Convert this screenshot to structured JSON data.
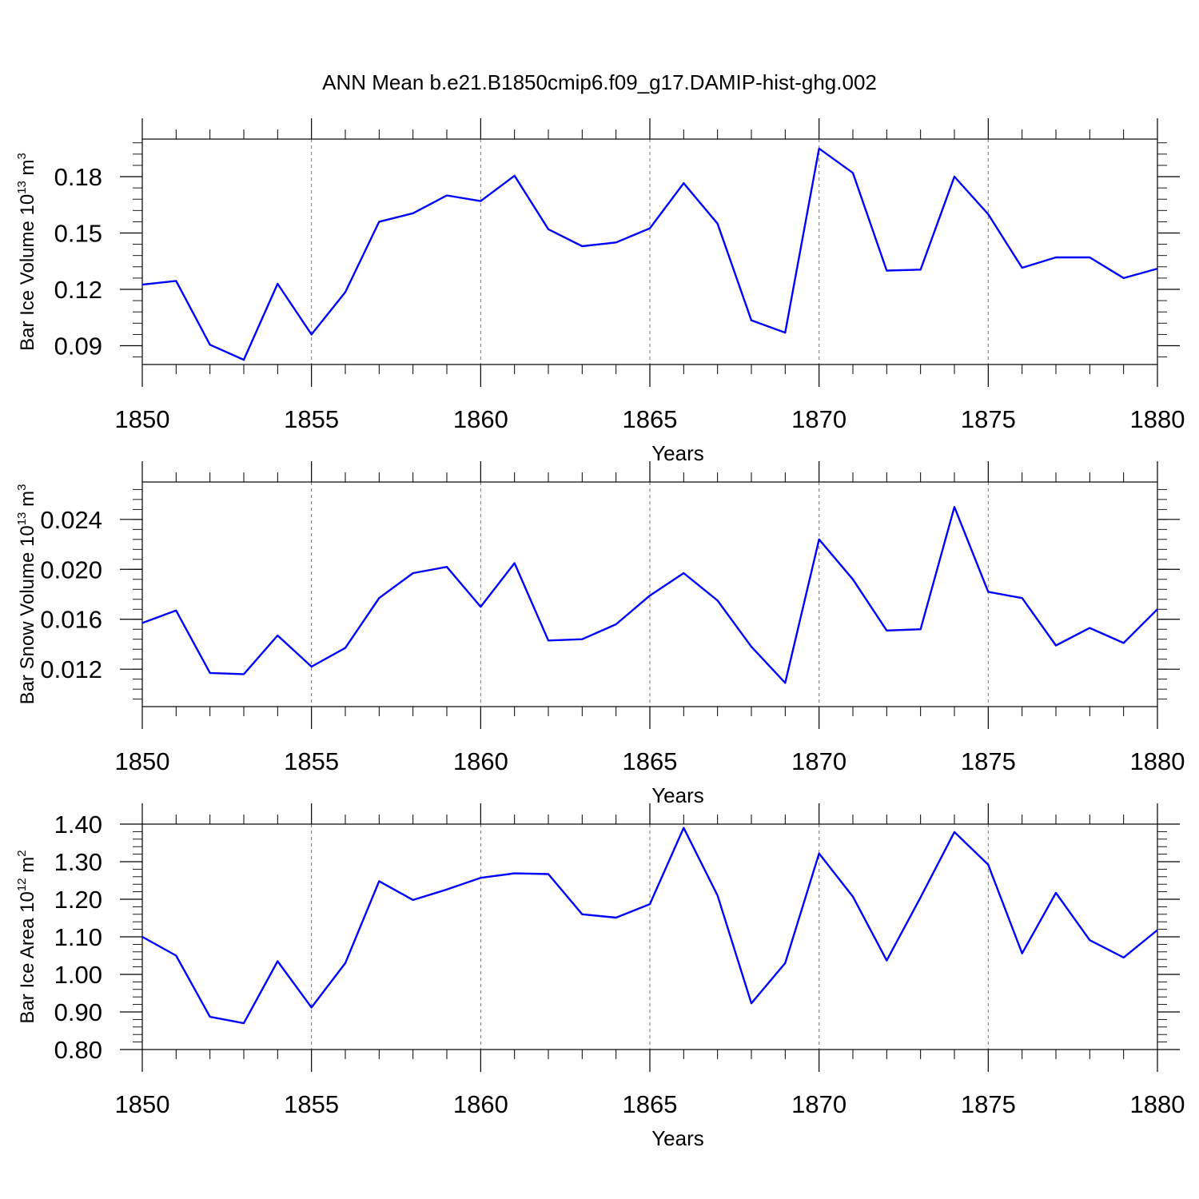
{
  "title": "ANN Mean b.e21.B1850cmip6.f09_g17.DAMIP-hist-ghg.002",
  "line_color": "#0000ff",
  "chart_data": [
    {
      "type": "line",
      "ylabel": "Bar Ice Volume 10",
      "ylabel_exp": "13",
      "ylabel_unit": " m",
      "ylabel_unit_exp": "3",
      "xlabel": "Years",
      "x": [
        1850,
        1851,
        1852,
        1853,
        1854,
        1855,
        1856,
        1857,
        1858,
        1859,
        1860,
        1861,
        1862,
        1863,
        1864,
        1865,
        1866,
        1867,
        1868,
        1869,
        1870,
        1871,
        1872,
        1873,
        1874,
        1875,
        1876,
        1877,
        1878,
        1879,
        1880
      ],
      "values": [
        0.1225,
        0.1245,
        0.0905,
        0.0825,
        0.123,
        0.096,
        0.1185,
        0.156,
        0.1605,
        0.17,
        0.167,
        0.1805,
        0.152,
        0.143,
        0.145,
        0.1525,
        0.1765,
        0.155,
        0.1035,
        0.097,
        0.195,
        0.182,
        0.13,
        0.1305,
        0.18,
        0.16,
        0.1315,
        0.137,
        0.137,
        0.126,
        0.131
      ],
      "xlim": [
        1850,
        1880
      ],
      "ylim": [
        0.08,
        0.2
      ],
      "yticks": [
        0.09,
        0.12,
        0.15,
        0.18
      ],
      "ytick_labels": [
        "0.09",
        "0.12",
        "0.15",
        "0.18"
      ],
      "xticks": [
        1850,
        1855,
        1860,
        1865,
        1870,
        1875,
        1880
      ],
      "xtick_labels": [
        "1850",
        "1855",
        "1860",
        "1865",
        "1870",
        "1875",
        "1880"
      ]
    },
    {
      "type": "line",
      "ylabel": "Bar Snow Volume 10",
      "ylabel_exp": "13",
      "ylabel_unit": " m",
      "ylabel_unit_exp": "3",
      "xlabel": "Years",
      "x": [
        1850,
        1851,
        1852,
        1853,
        1854,
        1855,
        1856,
        1857,
        1858,
        1859,
        1860,
        1861,
        1862,
        1863,
        1864,
        1865,
        1866,
        1867,
        1868,
        1869,
        1870,
        1871,
        1872,
        1873,
        1874,
        1875,
        1876,
        1877,
        1878,
        1879,
        1880
      ],
      "values": [
        0.0157,
        0.0167,
        0.0117,
        0.0116,
        0.0147,
        0.0122,
        0.0137,
        0.0177,
        0.0197,
        0.0202,
        0.017,
        0.0205,
        0.0143,
        0.0144,
        0.0156,
        0.0179,
        0.0197,
        0.0175,
        0.0138,
        0.0109,
        0.0224,
        0.0192,
        0.0151,
        0.0152,
        0.025,
        0.0182,
        0.0177,
        0.0139,
        0.0153,
        0.0141,
        0.0168
      ],
      "xlim": [
        1850,
        1880
      ],
      "ylim": [
        0.009,
        0.027
      ],
      "yticks": [
        0.012,
        0.016,
        0.02,
        0.024
      ],
      "ytick_labels": [
        "0.012",
        "0.016",
        "0.020",
        "0.024"
      ],
      "xticks": [
        1850,
        1855,
        1860,
        1865,
        1870,
        1875,
        1880
      ],
      "xtick_labels": [
        "1850",
        "1855",
        "1860",
        "1865",
        "1870",
        "1875",
        "1880"
      ]
    },
    {
      "type": "line",
      "ylabel": "Bar Ice Area 10",
      "ylabel_exp": "12",
      "ylabel_unit": " m",
      "ylabel_unit_exp": "2",
      "xlabel": "Years",
      "x": [
        1850,
        1851,
        1852,
        1853,
        1854,
        1855,
        1856,
        1857,
        1858,
        1859,
        1860,
        1861,
        1862,
        1863,
        1864,
        1865,
        1866,
        1867,
        1868,
        1869,
        1870,
        1871,
        1872,
        1873,
        1874,
        1875,
        1876,
        1877,
        1878,
        1879,
        1880
      ],
      "values": [
        1.1,
        1.05,
        0.887,
        0.87,
        1.035,
        0.912,
        1.03,
        1.248,
        1.198,
        1.226,
        1.257,
        1.269,
        1.267,
        1.16,
        1.151,
        1.187,
        1.39,
        1.21,
        0.923,
        1.03,
        1.322,
        1.207,
        1.037,
        1.205,
        1.379,
        1.292,
        1.056,
        1.217,
        1.091,
        1.045,
        1.118
      ],
      "xlim": [
        1850,
        1880
      ],
      "ylim": [
        0.8,
        1.4
      ],
      "yticks": [
        0.8,
        0.9,
        1.0,
        1.1,
        1.2,
        1.3,
        1.4
      ],
      "ytick_labels": [
        "0.80",
        "0.90",
        "1.00",
        "1.10",
        "1.20",
        "1.30",
        "1.40"
      ],
      "xticks": [
        1850,
        1855,
        1860,
        1865,
        1870,
        1875,
        1880
      ],
      "xtick_labels": [
        "1850",
        "1855",
        "1860",
        "1865",
        "1870",
        "1875",
        "1880"
      ]
    }
  ]
}
